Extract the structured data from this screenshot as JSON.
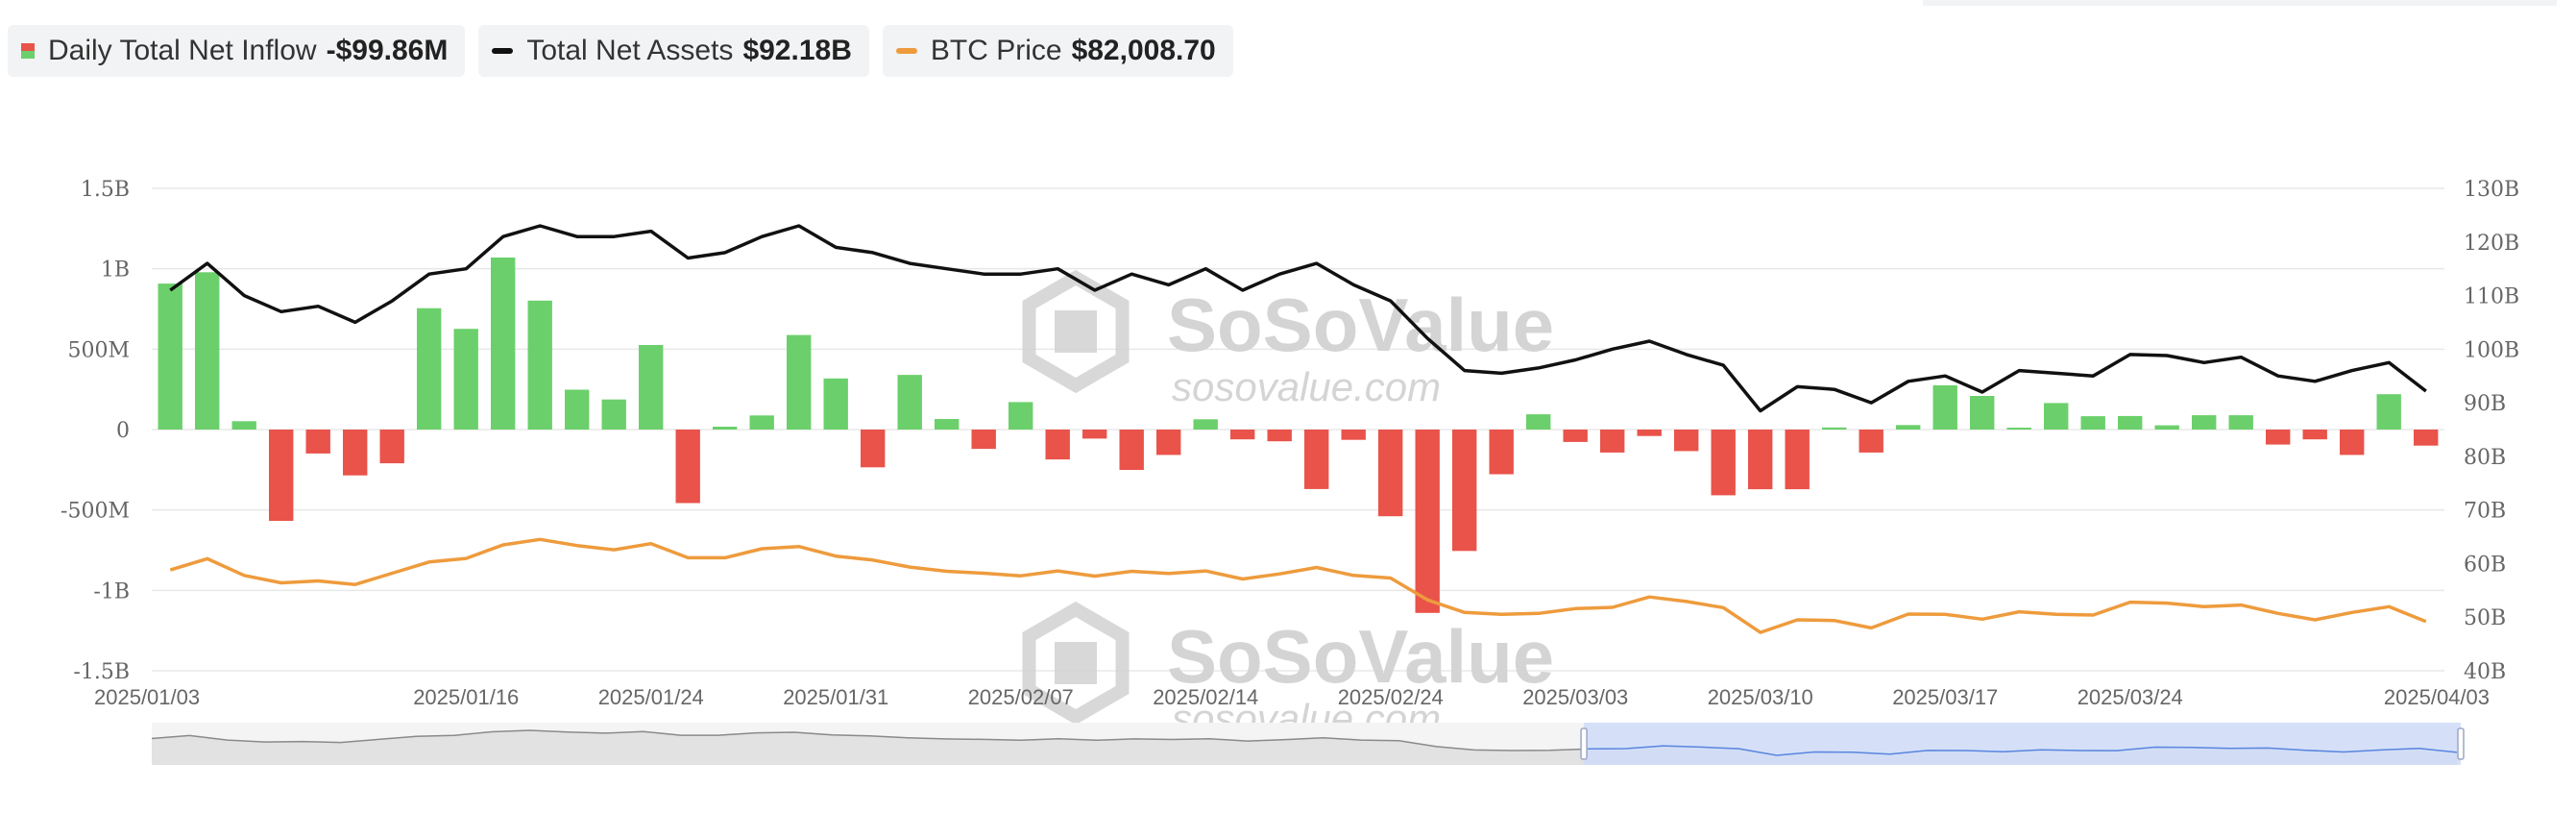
{
  "legend": {
    "inflow": {
      "name": "Daily Total Net Inflow",
      "value": "-$99.86M"
    },
    "assets": {
      "name": "Total Net Assets",
      "value": "$92.18B"
    },
    "btc": {
      "name": "BTC Price",
      "value": "$82,008.70"
    }
  },
  "watermark": {
    "brand": "SoSoValue",
    "url": "sosovalue.com"
  },
  "colors": {
    "positive": "#6bd06b",
    "negative": "#e9534a",
    "assets_line": "#111111",
    "btc_line": "#ee9b3d",
    "grid": "#e8e8e8",
    "navigator_fill": "#cfdcf8"
  },
  "chart_data": {
    "type": "bar",
    "dates": [
      "2025/01/03",
      "2025/01/06",
      "2025/01/07",
      "2025/01/08",
      "2025/01/10",
      "2025/01/13",
      "2025/01/14",
      "2025/01/15",
      "2025/01/16",
      "2025/01/17",
      "2025/01/21",
      "2025/01/22",
      "2025/01/23",
      "2025/01/24",
      "2025/01/27",
      "2025/01/28",
      "2025/01/29",
      "2025/01/30",
      "2025/01/31",
      "2025/02/03",
      "2025/02/04",
      "2025/02/05",
      "2025/02/06",
      "2025/02/07",
      "2025/02/10",
      "2025/02/11",
      "2025/02/12",
      "2025/02/13",
      "2025/02/14",
      "2025/02/18",
      "2025/02/19",
      "2025/02/20",
      "2025/02/21",
      "2025/02/24",
      "2025/02/25",
      "2025/02/26",
      "2025/02/27",
      "2025/02/28",
      "2025/03/03",
      "2025/03/04",
      "2025/03/05",
      "2025/03/06",
      "2025/03/07",
      "2025/03/10",
      "2025/03/11",
      "2025/03/12",
      "2025/03/13",
      "2025/03/14",
      "2025/03/17",
      "2025/03/18",
      "2025/03/19",
      "2025/03/20",
      "2025/03/21",
      "2025/03/24",
      "2025/03/25",
      "2025/03/26",
      "2025/03/27",
      "2025/03/28",
      "2025/03/31",
      "2025/04/01",
      "2025/04/02",
      "2025/04/03"
    ],
    "x_tick_labels": [
      "2025/01/03",
      "2025/01/16",
      "2025/01/24",
      "2025/01/31",
      "2025/02/07",
      "2025/02/14",
      "2025/02/24",
      "2025/03/03",
      "2025/03/10",
      "2025/03/17",
      "2025/03/24",
      "2025/04/03"
    ],
    "series": [
      {
        "name": "Daily Total Net Inflow",
        "type": "bar",
        "axis": "left",
        "unit": "USD",
        "values": [
          908000000,
          978000000,
          52000000,
          -568000000,
          -149000000,
          -285000000,
          -210000000,
          755000000,
          626000000,
          1070000000,
          802000000,
          248000000,
          187000000,
          526000000,
          -457000000,
          18000000,
          88000000,
          588000000,
          318000000,
          -235000000,
          340000000,
          66000000,
          -120000000,
          171000000,
          -186000000,
          -56000000,
          -251000000,
          -158000000,
          64000000,
          -61000000,
          -73000000,
          -370000000,
          -64000000,
          -539000000,
          -1140000000,
          -755000000,
          -278000000,
          95000000,
          -77000000,
          -143000000,
          -40000000,
          -134000000,
          -409000000,
          -371000000,
          -371000000,
          13000000,
          -143000000,
          28000000,
          275000000,
          209000000,
          12000000,
          165000000,
          83000000,
          84000000,
          26000000,
          89000000,
          89000000,
          -93000000,
          -61000000,
          -158000000,
          220000000,
          -99860000
        ]
      },
      {
        "name": "Total Net Assets",
        "type": "line",
        "axis": "right",
        "unit": "USD",
        "values": [
          111000000000,
          116000000000,
          110000000000,
          107000000000,
          108000000000,
          105000000000,
          109000000000,
          114000000000,
          115000000000,
          121000000000,
          123000000000,
          121000000000,
          121000000000,
          122000000000,
          117000000000,
          118000000000,
          121000000000,
          123000000000,
          119000000000,
          118000000000,
          116000000000,
          115000000000,
          114000000000,
          114000000000,
          115000000000,
          111000000000,
          114000000000,
          112000000000,
          115000000000,
          111000000000,
          114000000000,
          116000000000,
          112000000000,
          109000000000,
          102000000000,
          96000000000,
          95500000000,
          96500000000,
          98000000000,
          100000000000,
          101500000000,
          99000000000,
          97000000000,
          88500000000,
          93000000000,
          92500000000,
          90000000000,
          94000000000,
          95000000000,
          92000000000,
          96000000000,
          95500000000,
          95000000000,
          99000000000,
          98800000000,
          97500000000,
          98500000000,
          95000000000,
          94000000000,
          96000000000,
          97500000000,
          92180000000
        ]
      },
      {
        "name": "BTC Price",
        "type": "line",
        "axis": "right",
        "unit": "USD",
        "values": [
          98000,
          101500,
          96300,
          94000,
          94600,
          93500,
          97000,
          100500,
          101600,
          105800,
          107500,
          105600,
          104300,
          106200,
          101800,
          101800,
          104600,
          105300,
          102300,
          101100,
          98900,
          97600,
          97000,
          96200,
          97700,
          96100,
          97600,
          96900,
          97700,
          95200,
          96800,
          98800,
          96300,
          95500,
          88700,
          84800,
          84200,
          84500,
          86000,
          86400,
          89600,
          88200,
          86300,
          78600,
          82500,
          82300,
          80000,
          84300,
          84200,
          82700,
          85000,
          84200,
          84000,
          88000,
          87700,
          86600,
          87100,
          84500,
          82500,
          84800,
          86600,
          82008.7
        ]
      }
    ],
    "left_axis": {
      "ticks": [
        "1.5B",
        "1B",
        "500M",
        "0",
        "-500M",
        "-1B",
        "-1.5B"
      ],
      "range": [
        -1500000000,
        1500000000
      ]
    },
    "right_axis": {
      "ticks": [
        "130B",
        "120B",
        "110B",
        "100B",
        "90B",
        "80B",
        "70B",
        "60B",
        "50B",
        "40B"
      ],
      "range": [
        40000000000,
        130000000000
      ]
    },
    "grid": true,
    "legend_position": "top-left",
    "range_selector": {
      "selected_from": "2025/03/03",
      "selected_to": "2025/04/03"
    }
  }
}
